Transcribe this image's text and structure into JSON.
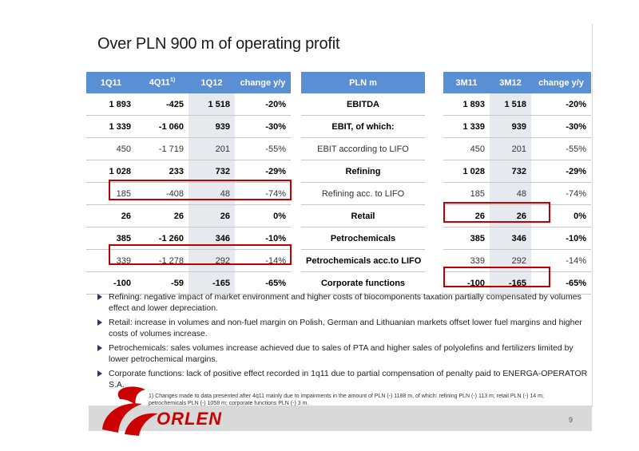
{
  "title": "Over PLN 900 m of operating profit",
  "left_table": {
    "headers": [
      "1Q11",
      "4Q11",
      "1Q12",
      "change y/y"
    ],
    "header_sup": "1)",
    "rows": [
      {
        "style": "bold",
        "cells": [
          "1 893",
          "-425",
          "1 518",
          "-20%"
        ]
      },
      {
        "style": "bold",
        "cells": [
          "1 339",
          "-1 060",
          "939",
          "-30%"
        ]
      },
      {
        "style": "light",
        "cells": [
          "450",
          "-1 719",
          "201",
          "-55%"
        ]
      },
      {
        "style": "bold",
        "cells": [
          "1 028",
          "233",
          "732",
          "-29%"
        ]
      },
      {
        "style": "light",
        "cells": [
          "185",
          "-408",
          "48",
          "-74%"
        ]
      },
      {
        "style": "bold",
        "cells": [
          "26",
          "26",
          "26",
          "0%"
        ]
      },
      {
        "style": "bold",
        "cells": [
          "385",
          "-1 260",
          "346",
          "-10%"
        ]
      },
      {
        "style": "light",
        "cells": [
          "339",
          "-1 278",
          "292",
          "-14%"
        ]
      },
      {
        "style": "bold",
        "cells": [
          "-100",
          "-59",
          "-165",
          "-65%"
        ]
      }
    ]
  },
  "mid_table": {
    "header": "PLN m",
    "rows": [
      {
        "style": "bold",
        "label": "EBITDA"
      },
      {
        "style": "bold",
        "label": "EBIT, of which:"
      },
      {
        "style": "light",
        "label": "EBIT according to LIFO"
      },
      {
        "style": "bold",
        "label": "Refining"
      },
      {
        "style": "light",
        "label": "Refining acc. to LIFO"
      },
      {
        "style": "bold",
        "label": "Retail"
      },
      {
        "style": "bold",
        "label": "Petrochemicals"
      },
      {
        "style": "bold",
        "label": "Petrochemicals acc.to LIFO"
      },
      {
        "style": "bold",
        "label": "Corporate functions"
      }
    ]
  },
  "right_table": {
    "headers": [
      "3M11",
      "3M12",
      "change y/y"
    ],
    "rows": [
      {
        "style": "bold",
        "cells": [
          "1 893",
          "1 518",
          "-20%"
        ]
      },
      {
        "style": "bold",
        "cells": [
          "1 339",
          "939",
          "-30%"
        ]
      },
      {
        "style": "light",
        "cells": [
          "450",
          "201",
          "-55%"
        ]
      },
      {
        "style": "bold",
        "cells": [
          "1 028",
          "732",
          "-29%"
        ]
      },
      {
        "style": "light",
        "cells": [
          "185",
          "48",
          "-74%"
        ]
      },
      {
        "style": "bold",
        "cells": [
          "26",
          "26",
          "0%"
        ]
      },
      {
        "style": "bold",
        "cells": [
          "385",
          "346",
          "-10%"
        ]
      },
      {
        "style": "light",
        "cells": [
          "339",
          "292",
          "-14%"
        ]
      },
      {
        "style": "bold",
        "cells": [
          "-100",
          "-165",
          "-65%"
        ]
      }
    ]
  },
  "bullets": [
    "Refining: negative impact of market environment and higher costs of biocomponents taxation partially compensated by volumes effect and lower depreciation.",
    "Retail: increase in volumes and non-fuel margin on Polish, German and Lithuanian markets offset lower fuel margins and higher costs of volumes increase.",
    "Petrochemicals: sales volumes increase achieved due to sales of PTA and higher sales of polyolefins and fertilizers limited by lower petrochemical margins.",
    "Corporate functions: lack of positive effect recorded in 1q11 due to partial compensation of penalty paid to ENERGA-OPERATOR S.A."
  ],
  "footnote": "1) Changes made to data presented after 4q11 mainly due to impairments in the amount of PLN (-) 1188 m, of which: refining PLN (-) 113 m; retail PLN (-) 14 m; petrochemicals PLN (-) 1058 m; corporate functions PLN (-) 3 m.",
  "logo_text": "ORLEN",
  "page_number": "9",
  "colors": {
    "header_blue": "#5b8fd3",
    "highlight_red": "#c00000",
    "shade_gray": "#e6e9ee",
    "brand_red": "#cc0000"
  }
}
